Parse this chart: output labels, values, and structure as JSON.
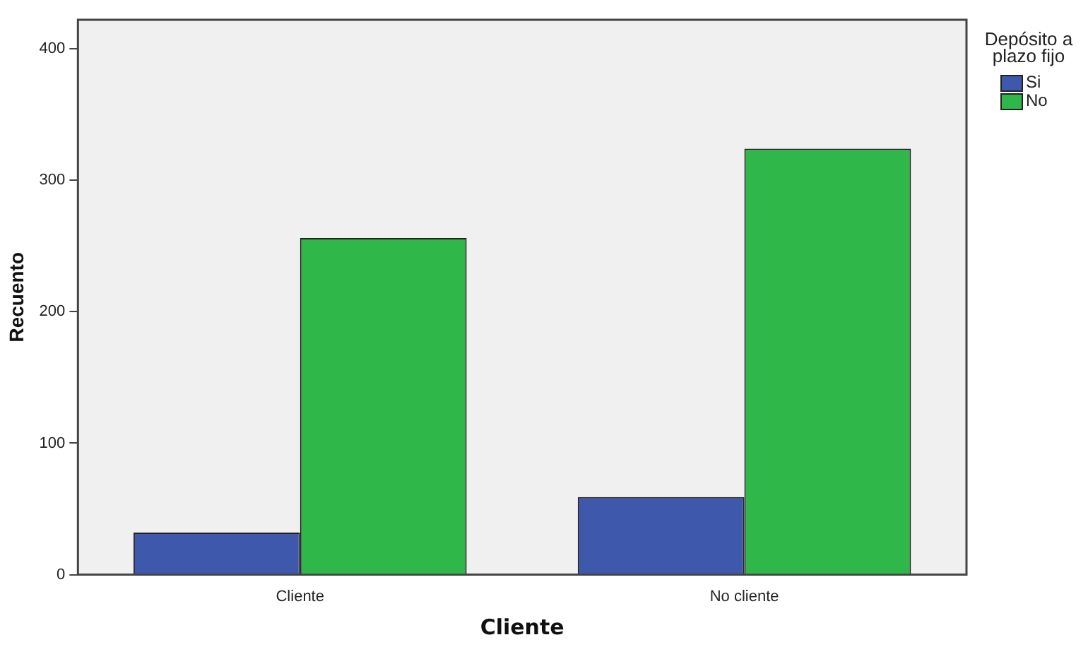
{
  "chart_data": {
    "type": "bar",
    "xlabel": "Cliente",
    "ylabel": "Recuento",
    "legend_title": "Depósito a plazo fijo",
    "legend": "top right",
    "categories": [
      "Cliente",
      "No cliente"
    ],
    "series": [
      {
        "name": "Si",
        "color": "#3e58ac",
        "values": [
          32,
          59
        ]
      },
      {
        "name": "No",
        "color": "#2fb74a",
        "values": [
          256,
          324
        ]
      }
    ],
    "ylim": [
      0,
      422
    ],
    "yticks": [
      0,
      100,
      200,
      300,
      400
    ],
    "grid": false
  }
}
